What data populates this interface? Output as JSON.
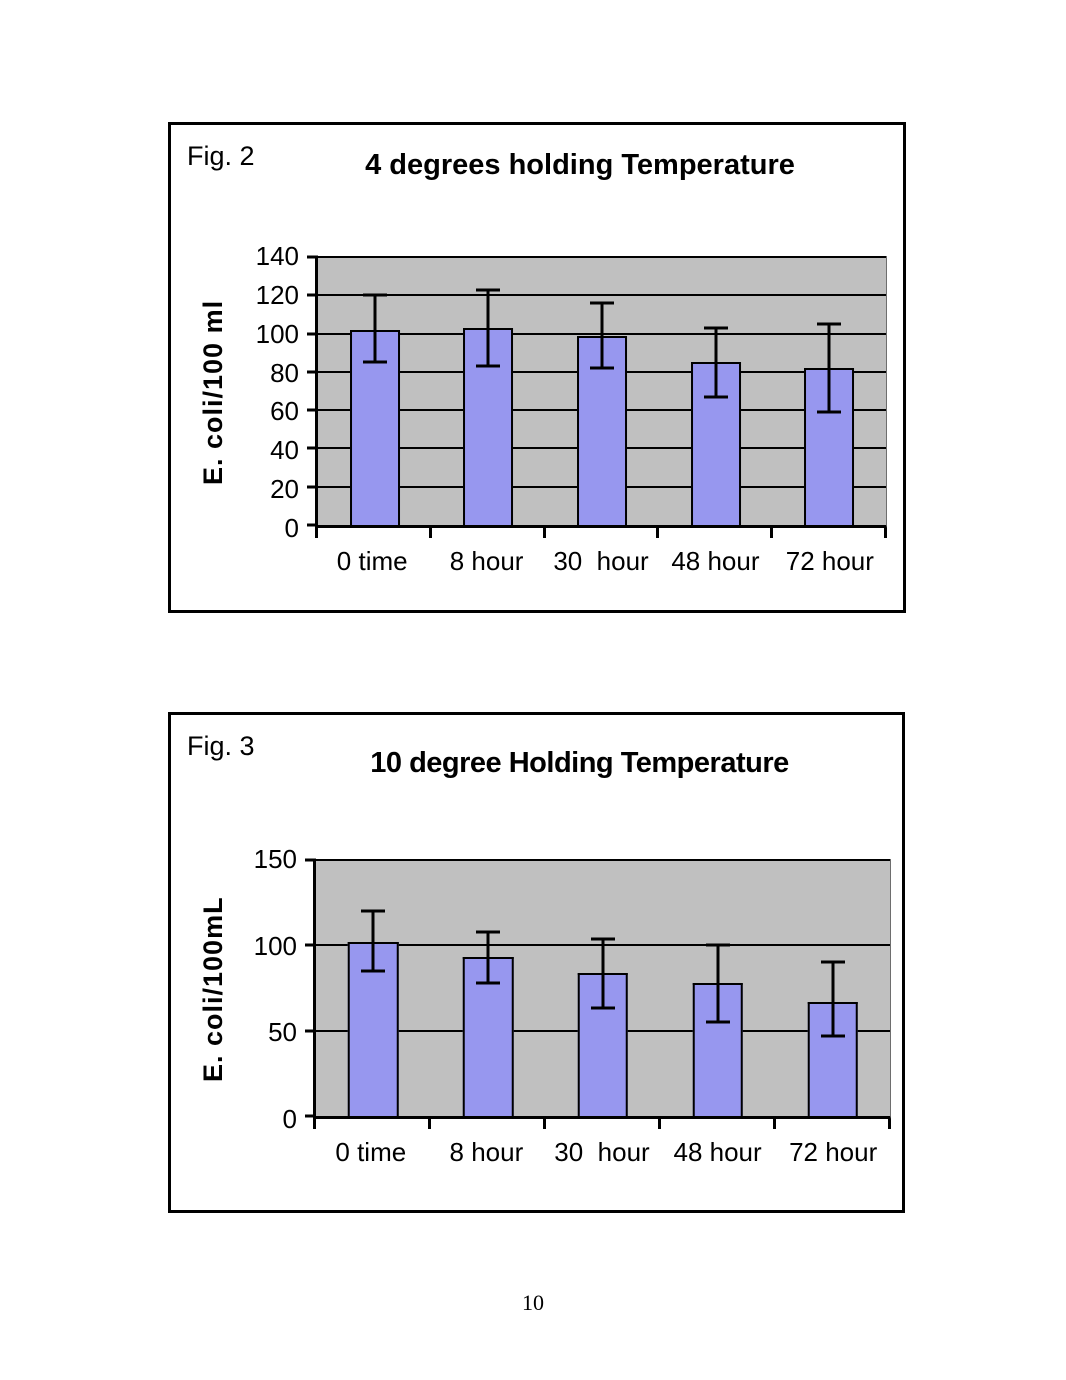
{
  "page": {
    "number": "10"
  },
  "chart_data": [
    {
      "type": "bar",
      "figure_label": "Fig. 2",
      "title": "4 degrees holding Temperature",
      "xlabel": "",
      "ylabel": "E. coli/100 ml",
      "categories": [
        "0 time",
        "8 hour",
        "30  hour",
        "48 hour",
        "72 hour"
      ],
      "values": [
        102,
        103,
        99,
        85,
        82
      ],
      "error_upper": [
        120,
        123,
        116,
        103,
        105
      ],
      "error_lower": [
        85,
        83,
        82,
        67,
        59
      ],
      "ylim": [
        0,
        140
      ],
      "yticks": [
        0,
        20,
        40,
        60,
        80,
        100,
        120,
        140
      ],
      "grid": true,
      "legend": "none",
      "bar_color": "#9797EF",
      "plot_bg": "#C0C0C0"
    },
    {
      "type": "bar",
      "figure_label": "Fig. 3",
      "title": "10 degree Holding Temperature",
      "xlabel": "",
      "ylabel": "E. coli/100mL",
      "categories": [
        "0 time",
        "8 hour",
        "30  hour",
        "48 hour",
        "72 hour"
      ],
      "values": [
        102,
        93,
        84,
        78,
        67
      ],
      "error_upper": [
        120,
        108,
        104,
        100,
        90
      ],
      "error_lower": [
        85,
        78,
        63,
        55,
        47
      ],
      "ylim": [
        0,
        150
      ],
      "yticks": [
        0,
        50,
        100,
        150
      ],
      "grid": true,
      "legend": "none",
      "bar_color": "#9797EF",
      "plot_bg": "#C0C0C0"
    }
  ]
}
